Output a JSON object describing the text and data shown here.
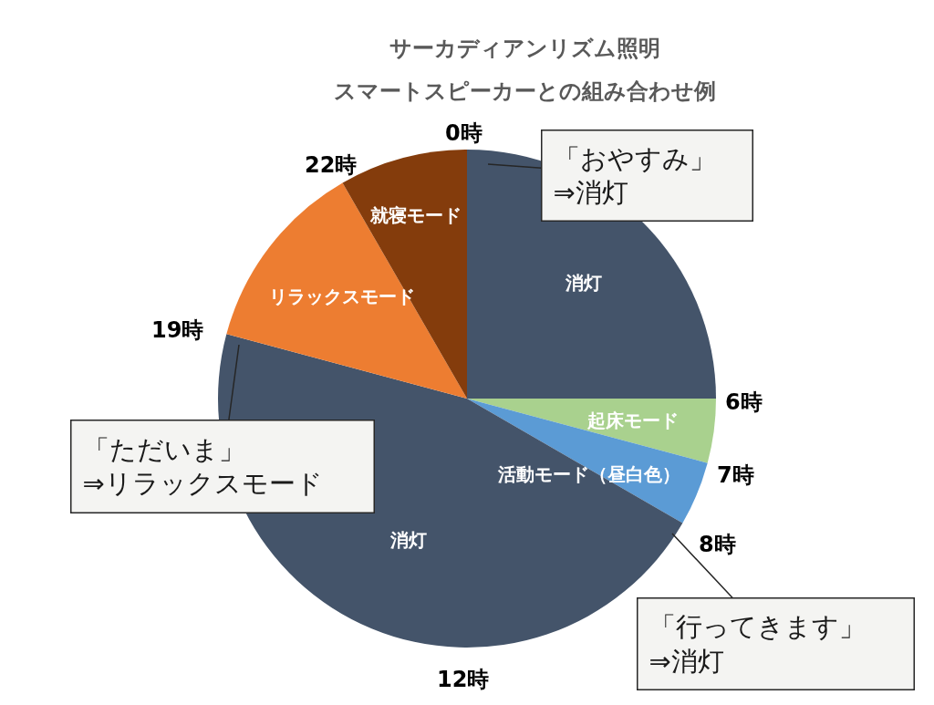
{
  "chart_data": {
    "type": "pie",
    "title": "サーカディアンリズム照明",
    "subtitle": "スマートスピーカーとの組み合わせ例",
    "categories": [
      "消灯",
      "起床モード",
      "活動モード（昼白色）",
      "消灯",
      "リラックスモード",
      "就寝モード"
    ],
    "values": [
      25,
      4.17,
      4.17,
      45.83,
      12.5,
      8.33
    ],
    "colors": [
      "#44546a",
      "#a9d18e",
      "#5b9bd5",
      "#44546a",
      "#ed7d31",
      "#843c0c"
    ],
    "annotations": [
      "0時",
      "6時",
      "7時",
      "8時",
      "12時",
      "19時",
      "22時",
      "「おやすみ」\n⇒消灯",
      "「行ってきます」\n⇒消灯",
      "「ただいま」\n⇒リラックスモード"
    ]
  }
}
